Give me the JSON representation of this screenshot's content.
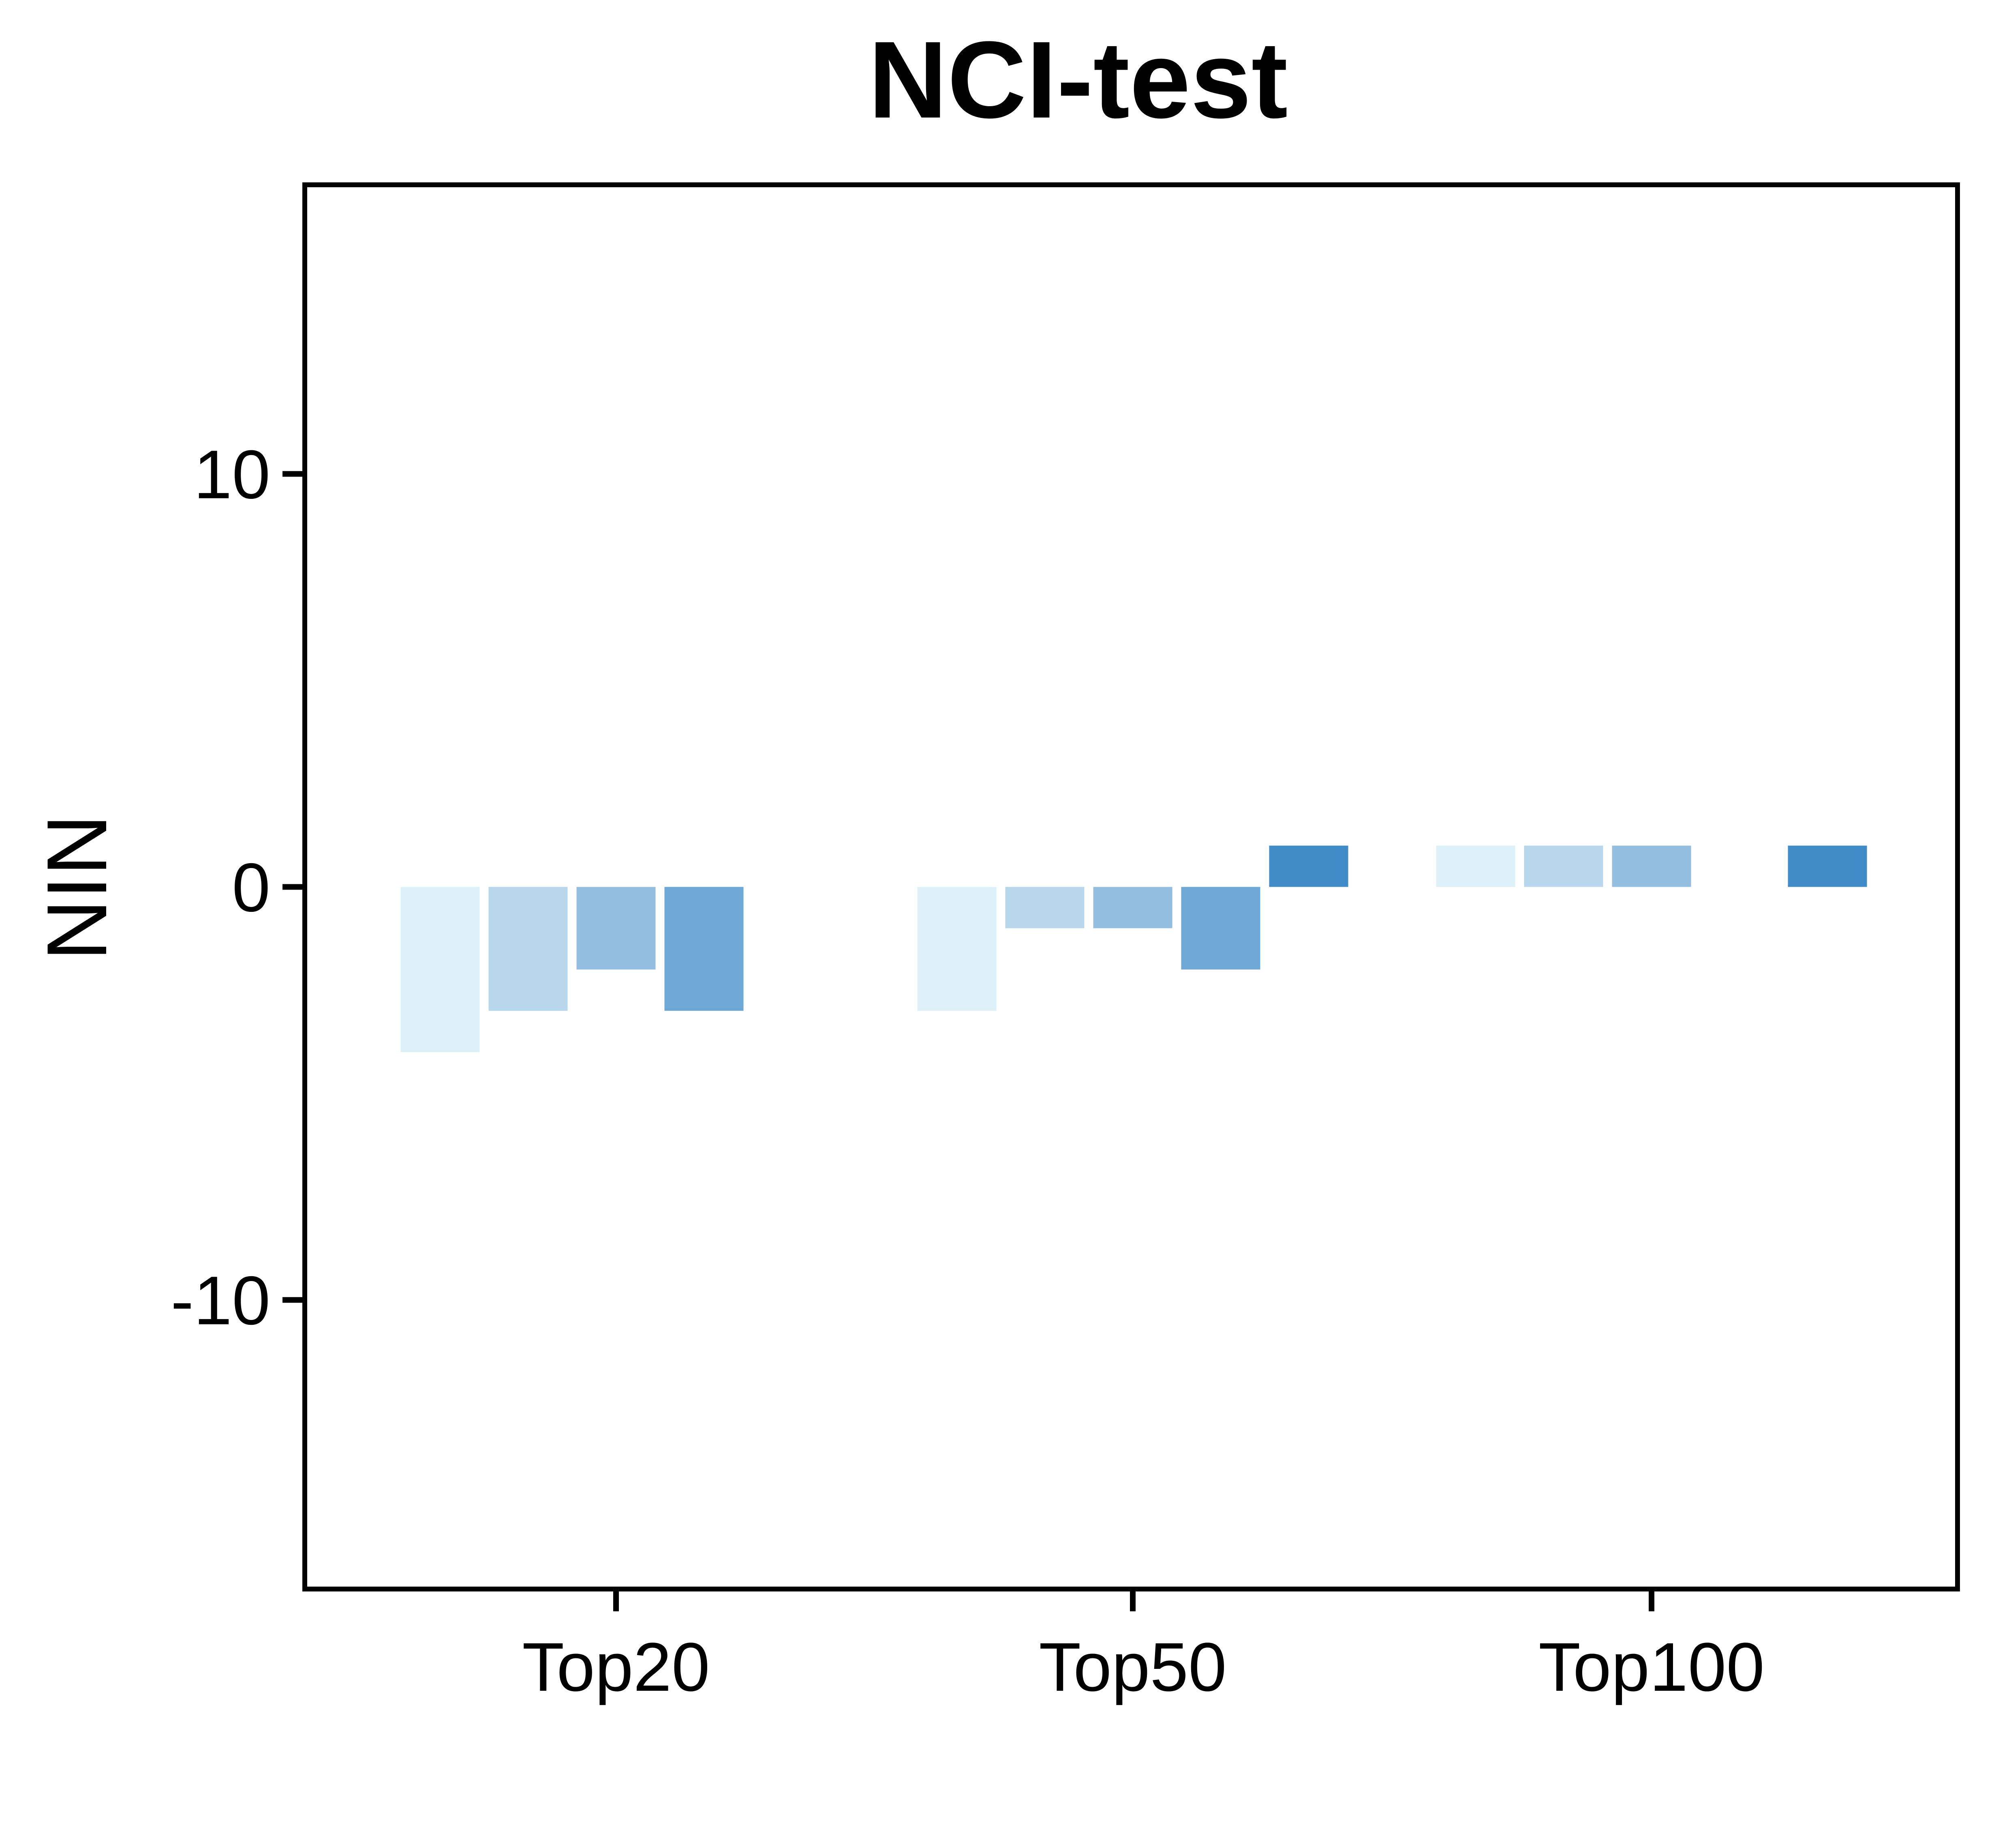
{
  "chart_data": {
    "type": "bar",
    "title": "NCI-test",
    "xlabel": "",
    "ylabel": "NIN",
    "ylim": [
      -17,
      17
    ],
    "yticks": [
      {
        "value": 10,
        "label": "10"
      },
      {
        "value": 0,
        "label": "0"
      },
      {
        "value": -10,
        "label": "-10"
      }
    ],
    "categories": [
      "Top20",
      "Top50",
      "Top100"
    ],
    "grid": false,
    "legend": "none",
    "series": [
      {
        "values": [
          -4,
          -3,
          1
        ],
        "color": "#ddeff7"
      },
      {
        "values": [
          -3,
          -1,
          1
        ],
        "color": "#b8d7ec"
      },
      {
        "values": [
          -2,
          -1,
          1
        ],
        "color": "#94bee0"
      },
      {
        "values": [
          -3,
          -2,
          0
        ],
        "color": "#6ca7d5"
      },
      {
        "values": [
          0,
          1,
          1
        ],
        "color": "#428bc9"
      }
    ]
  }
}
